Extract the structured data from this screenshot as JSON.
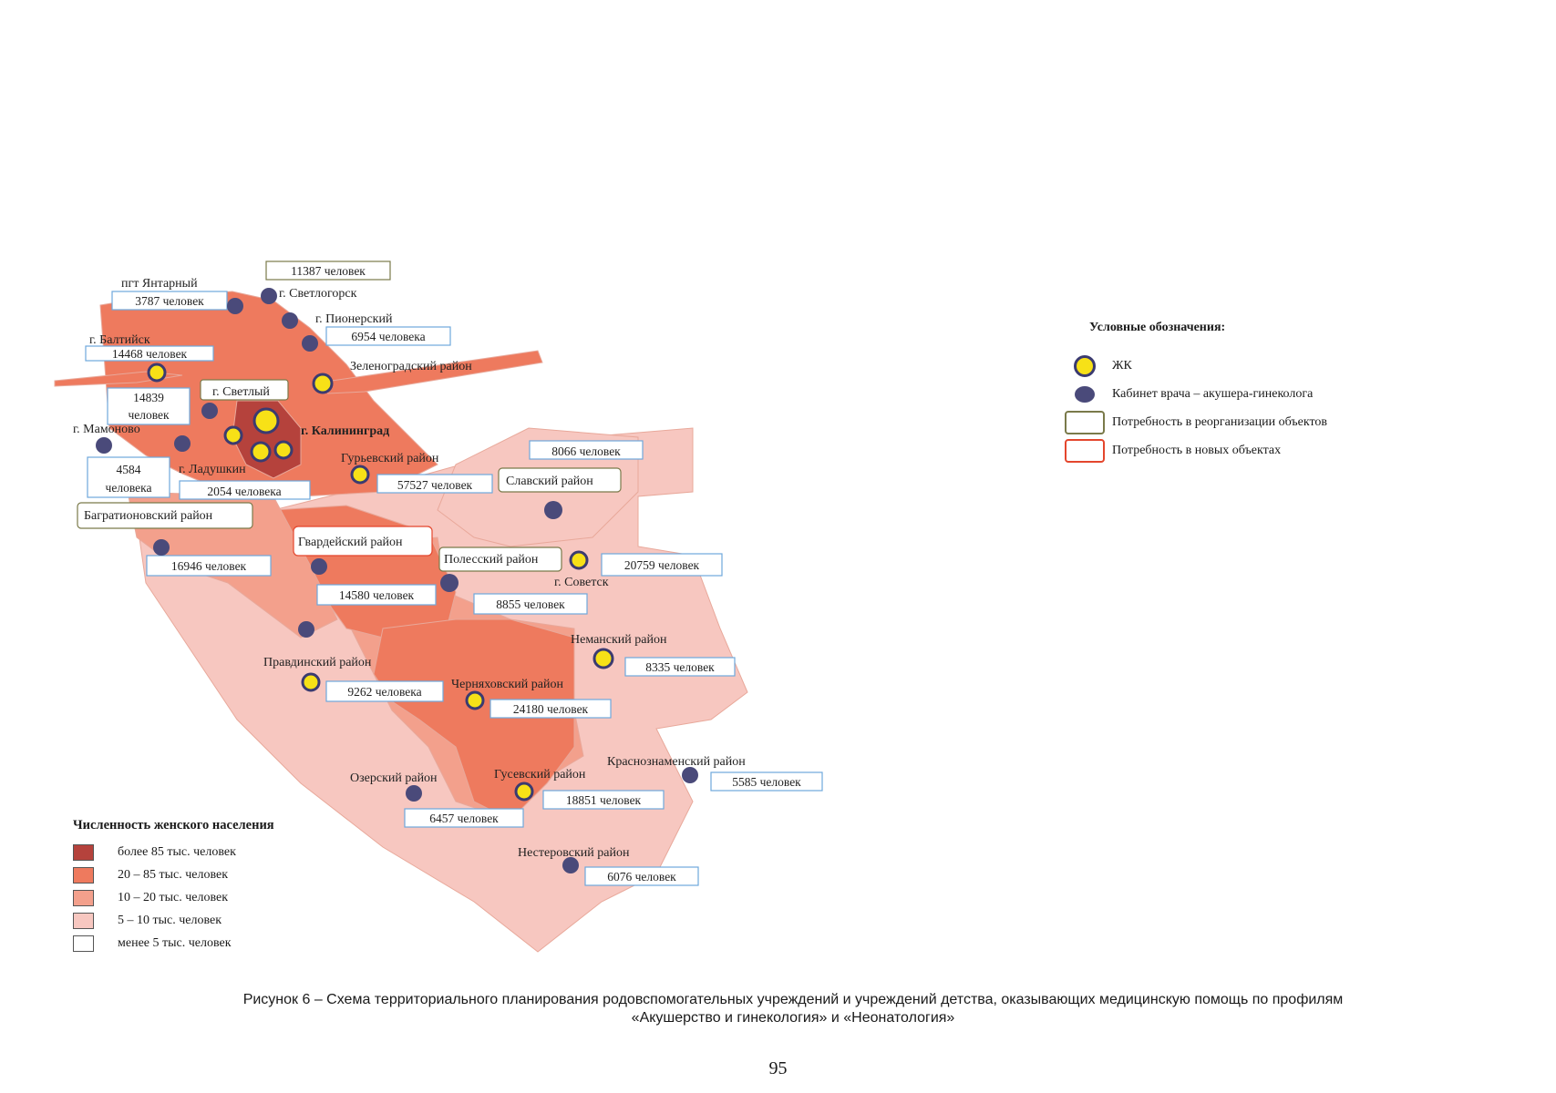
{
  "colors": {
    "density_85_plus": "#b5423c",
    "density_20_85": "#ee7a5e",
    "density_10_20": "#f3a08c",
    "density_5_10": "#f7c7c0",
    "density_under_5": "#ffffff",
    "jk_fill": "#f7e117",
    "cabinet_fill": "#4a4a7a",
    "box_reorg": "#7a7a4a",
    "box_new": "#e4462d",
    "box_info": "#6fa8dc"
  },
  "places": {
    "yantarny": "пгт Янтарный",
    "svetlogorsk": "г. Светлогорск",
    "pionersky": "г. Пионерский",
    "baltiysk": "г. Балтийск",
    "zelenogradsky": "Зеленоградский район",
    "svetly": "г. Светлый",
    "kaliningrad": "г. Калининград",
    "mamonovo": "г. Мамоново",
    "ladushkin": "г. Ладушкин",
    "guryevsky": "Гурьевский район",
    "slavsky": "Славский район",
    "bagrationovsky": "Багратионовский район",
    "gvardeysky": "Гвардейский район",
    "polessky": "Полесский район",
    "sovetsk": "г. Советск",
    "nemansky": "Неманский район",
    "pravdinsky": "Правдинский район",
    "chernyakhovsky": "Черняховский район",
    "ozersky": "Озерский район",
    "gusevsky": "Гусевский район",
    "krasnoznamensky": "Краснознаменский район",
    "nesterovsky": "Нестеровский район"
  },
  "counts": {
    "svetlogorsk": "11387 человек",
    "yantarny": "3787 человек",
    "pionersky": "6954 человека",
    "baltiysk": "14468 человек",
    "svetly_line1": "14839",
    "svetly_line2": "человек",
    "mamonovo_line1": "4584",
    "mamonovo_line2": "человека",
    "ladushkin": "2054 человека",
    "guryevsky": "57527 человек",
    "slavsky": "8066 человек",
    "bagrationovsky": "16946 человек",
    "gvardeysky": "14580 человек",
    "polessky": "8855 человек",
    "sovetsk": "20759 человек",
    "nemansky": "8335 человек",
    "pravdinsky": "9262 человека",
    "chernyakhovsky": "24180 человек",
    "krasnoznamensky": "5585 человек",
    "gusevsky": "18851 человек",
    "ozersky": "6457 человек",
    "nesterovsky": "6076 человек"
  },
  "legend_right": {
    "title": "Условные обозначения:",
    "jk": "ЖК",
    "cabinet": "Кабинет врача – акушера-гинеколога",
    "reorg": "Потребность в реорганизации объектов",
    "new_objects": "Потребность в новых объектах"
  },
  "legend_left": {
    "title": "Численность женского населения",
    "items": [
      "более 85 тыс. человек",
      "20 – 85 тыс. человек",
      "10 – 20 тыс. человек",
      "5 – 10 тыс. человек",
      "менее 5 тыс. человек"
    ]
  },
  "caption": {
    "line1": "Рисунок 6 – Схема территориального планирования родовспомогательных учреждений и учреждений детства, оказывающих медицинскую помощь по профилям",
    "line2": "«Акушерство и гинекология» и «Неонатология»"
  },
  "page_number": "95"
}
